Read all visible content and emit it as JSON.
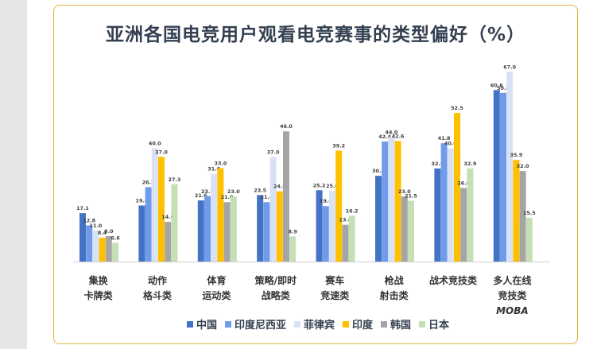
{
  "title": "亚洲各国电竞用户观看电竞赛事的类型偏好（%）",
  "chart_data": {
    "type": "bar",
    "title": "亚洲各国电竞用户观看电竞赛事的类型偏好（%）",
    "xlabel": "",
    "ylabel": "",
    "ylim": [
      0,
      70
    ],
    "grid": false,
    "legend_position": "bottom",
    "categories": [
      [
        "集换",
        "卡牌类"
      ],
      [
        "动作",
        "格斗类"
      ],
      [
        "体育",
        "运动类"
      ],
      [
        "策略/即时",
        "战略类"
      ],
      [
        "赛车",
        "竞速类"
      ],
      [
        "枪战",
        "射击类"
      ],
      [
        "战术竞技类"
      ],
      [
        "多人在线",
        "竞技类",
        "MOBA"
      ]
    ],
    "series": [
      {
        "name": "中国",
        "color": "#4472c4",
        "values": [
          17.1,
          19.8,
          21.6,
          23.5,
          25.2,
          30.3,
          32.9,
          60.6
        ]
      },
      {
        "name": "印度尼西亚",
        "color": "#6f9bea",
        "values": [
          12.8,
          26.3,
          23.1,
          21.0,
          19.6,
          42.4,
          41.8,
          59.6
        ]
      },
      {
        "name": "菲律宾",
        "color": "#d9e1f5",
        "values": [
          11.0,
          40.0,
          31.0,
          37.0,
          25.0,
          44.0,
          40.0,
          67.0
        ]
      },
      {
        "name": "印度",
        "color": "#ffc000",
        "values": [
          8.4,
          37.0,
          33.0,
          24.8,
          39.2,
          42.6,
          52.5,
          35.9
        ]
      },
      {
        "name": "韩国",
        "color": "#a5a5a5",
        "values": [
          9.0,
          14.0,
          21.0,
          46.0,
          13.0,
          23.0,
          26.0,
          32.0
        ]
      },
      {
        "name": "日本",
        "color": "#c5e0b4",
        "values": [
          6.6,
          27.3,
          23.0,
          8.9,
          16.2,
          21.5,
          32.9,
          15.5
        ]
      }
    ]
  }
}
